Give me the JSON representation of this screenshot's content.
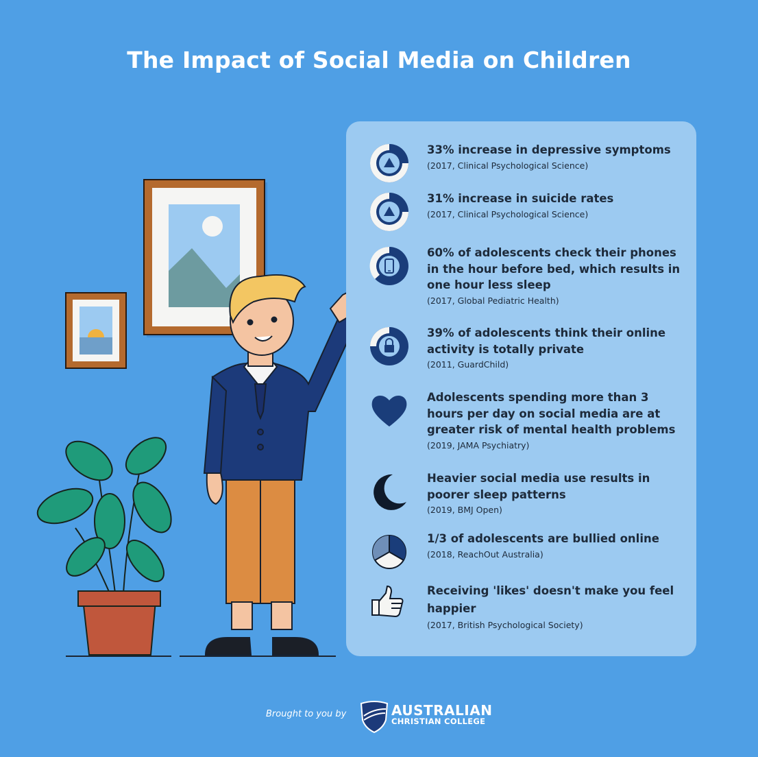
{
  "title": "The Impact of Social Media on Children",
  "colors": {
    "background": "#4f9fe5",
    "panel": "#9ccaf1",
    "icon_dark": "#1a3d7a",
    "icon_mid": "#2a5ea8"
  },
  "stats": [
    {
      "text": "33% increase in depressive symptoms",
      "source": "(2017, Clinical Psychological Science)",
      "icon": "warning-ring-icon"
    },
    {
      "text": "31% increase in suicide rates",
      "source": "(2017, Clinical Psychological Science)",
      "icon": "warning-ring-icon"
    },
    {
      "text": "60% of adolescents check their phones in the hour before bed, which results in one hour less sleep",
      "source": "(2017, Global Pediatric Health)",
      "icon": "phone-ring-icon"
    },
    {
      "text": "39% of adolescents think their online activity is totally private",
      "source": "(2011, GuardChild)",
      "icon": "lock-ring-icon"
    },
    {
      "text": "Adolescents spending more than 3 hours per day on social media are at greater risk of mental health problems",
      "source": "(2019, JAMA Psychiatry)",
      "icon": "heart-icon"
    },
    {
      "text": "Heavier social media use results in poorer sleep patterns",
      "source": "(2019, BMJ Open)",
      "icon": "moon-icon"
    },
    {
      "text": "1/3 of adolescents are bullied online",
      "source": "(2018, ReachOut Australia)",
      "icon": "pie-icon"
    },
    {
      "text": "Receiving 'likes' doesn't make you feel happier",
      "source": "(2017, British Psychological Society)",
      "icon": "thumbs-up-icon"
    }
  ],
  "footer": {
    "brought_by": "Brought to you by",
    "logo_line1": "AUSTRALIAN",
    "logo_line2": "CHRISTIAN COLLEGE"
  }
}
